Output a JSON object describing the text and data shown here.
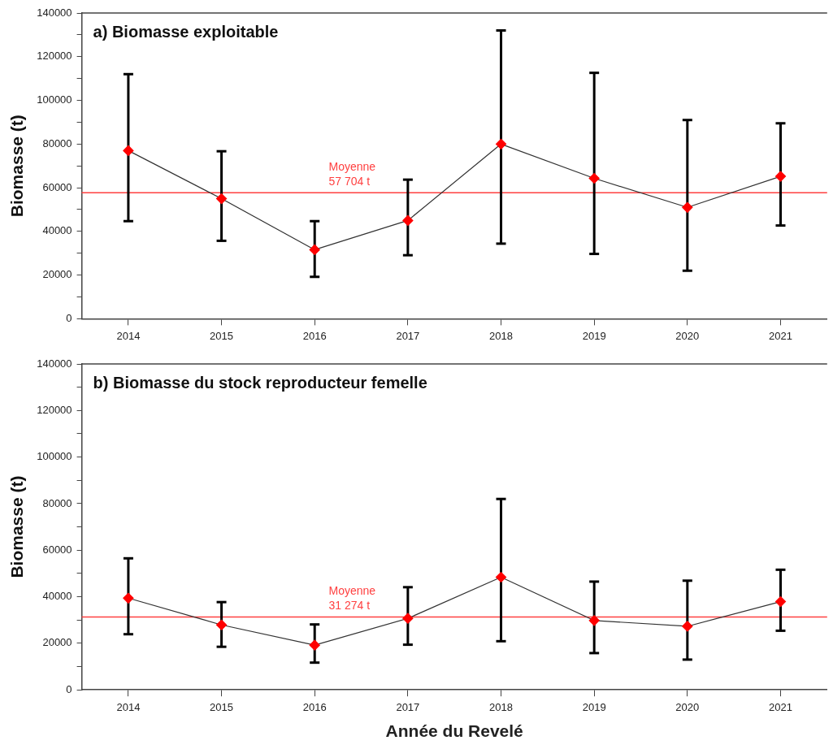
{
  "chart_data": [
    {
      "type": "line",
      "title": "a) Biomasse exploitable",
      "ylabel": "Biomasse (t)",
      "categories": [
        "2014",
        "2015",
        "2016",
        "2017",
        "2018",
        "2019",
        "2020",
        "2021"
      ],
      "marker": "diamond",
      "line_style": "solid",
      "series": [
        {
          "color": "#333333",
          "colors": [
            "#ff0000",
            "#ff0000",
            "#ff0000",
            "#ff0000",
            "#ff0000",
            "#ff0000",
            "#ff0000",
            "#ff0000"
          ],
          "values": [
            77000,
            55000,
            31600,
            45000,
            80000,
            64300,
            51000,
            65200
          ],
          "errors": [
            [
              44700,
              112000
            ],
            [
              35700,
              76700
            ],
            [
              19200,
              44700
            ],
            [
              29100,
              63700
            ],
            [
              34400,
              132000
            ],
            [
              29700,
              112600
            ],
            [
              22000,
              91000
            ],
            [
              42700,
              89500
            ]
          ]
        }
      ],
      "ylim": [
        0,
        140000
      ],
      "yticks": [
        0,
        {
          "value": 10000,
          "label": null
        },
        20000,
        {
          "value": 30000,
          "label": null
        },
        40000,
        {
          "value": 50000,
          "label": null
        },
        60000,
        {
          "value": 70000,
          "label": null
        },
        80000,
        {
          "value": 90000,
          "label": null
        },
        100000,
        {
          "value": 110000,
          "label": null
        },
        120000,
        {
          "value": 130000,
          "label": null
        },
        140000
      ],
      "ref_lines": [
        {
          "axis": "y",
          "value": 57704,
          "label": "Moyenne\n57 704 t",
          "color": "#ff4040"
        }
      ]
    },
    {
      "type": "line",
      "title": "b) Biomasse du stock reproducteur femelle",
      "xlabel": "Année du Revelé",
      "ylabel": "Biomasse (t)",
      "categories": [
        "2014",
        "2015",
        "2016",
        "2017",
        "2018",
        "2019",
        "2020",
        "2021"
      ],
      "marker": "diamond",
      "line_style": "solid",
      "series": [
        {
          "color": "#333333",
          "colors": [
            "#ff0000",
            "#ff0000",
            "#ff0000",
            "#ff0000",
            "#ff0000",
            "#ff0000",
            "#ff0000",
            "#ff0000"
          ],
          "values": [
            39400,
            27900,
            19200,
            30700,
            48400,
            29800,
            27300,
            37900
          ],
          "errors": [
            [
              23900,
              56500
            ],
            [
              18500,
              37700
            ],
            [
              11700,
              28100
            ],
            [
              19400,
              44100
            ],
            [
              20900,
              82000
            ],
            [
              15800,
              46500
            ],
            [
              13000,
              46900
            ],
            [
              25400,
              51600
            ]
          ]
        }
      ],
      "ylim": [
        0,
        140000
      ],
      "yticks": [
        0,
        {
          "value": 10000,
          "label": null
        },
        20000,
        {
          "value": 30000,
          "label": null
        },
        40000,
        {
          "value": 50000,
          "label": null
        },
        60000,
        {
          "value": 70000,
          "label": null
        },
        80000,
        {
          "value": 90000,
          "label": null
        },
        100000,
        {
          "value": 110000,
          "label": null
        },
        120000,
        {
          "value": 130000,
          "label": null
        },
        140000
      ],
      "ref_lines": [
        {
          "axis": "y",
          "value": 31274,
          "label": "Moyenne\n31 274 t",
          "color": "#ff4040"
        }
      ]
    }
  ]
}
